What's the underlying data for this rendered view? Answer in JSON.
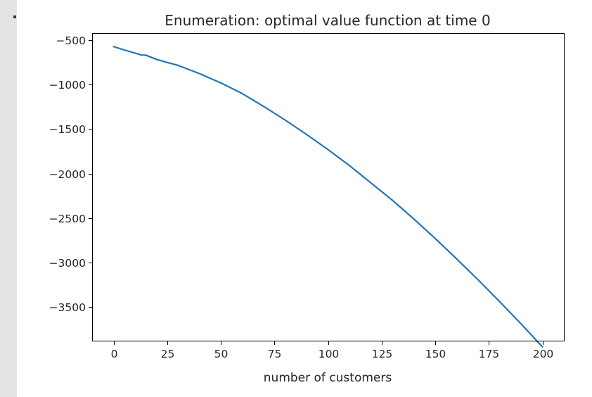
{
  "chart_data": {
    "type": "line",
    "title": "Enumeration: optimal value function at time 0",
    "xlabel": "number of customers",
    "ylabel": "",
    "xlim": [
      -10,
      210
    ],
    "ylim": [
      -3880,
      -420
    ],
    "xticks": [
      0,
      25,
      50,
      75,
      100,
      125,
      150,
      175,
      200
    ],
    "yticks": [
      -500,
      -1000,
      -1500,
      -2000,
      -2500,
      -3000,
      -3500
    ],
    "xtick_labels": [
      "0",
      "25",
      "50",
      "75",
      "100",
      "125",
      "150",
      "175",
      "200"
    ],
    "ytick_labels": [
      "−500",
      "−1000",
      "−1500",
      "−2000",
      "−2500",
      "−3000",
      "−3500"
    ],
    "grid": false,
    "series": [
      {
        "color": "#1f77b4",
        "x": [
          0,
          5,
          10,
          13,
          15,
          20,
          25,
          30,
          40,
          50,
          60,
          70,
          80,
          90,
          100,
          110,
          120,
          130,
          140,
          150,
          160,
          170,
          180,
          190,
          200
        ],
        "y": [
          -572,
          -610,
          -645,
          -667,
          -668,
          -715,
          -750,
          -783,
          -875,
          -980,
          -1100,
          -1245,
          -1398,
          -1560,
          -1730,
          -1910,
          -2105,
          -2300,
          -2510,
          -2730,
          -2960,
          -3195,
          -3440,
          -3690,
          -3950
        ]
      }
    ]
  }
}
